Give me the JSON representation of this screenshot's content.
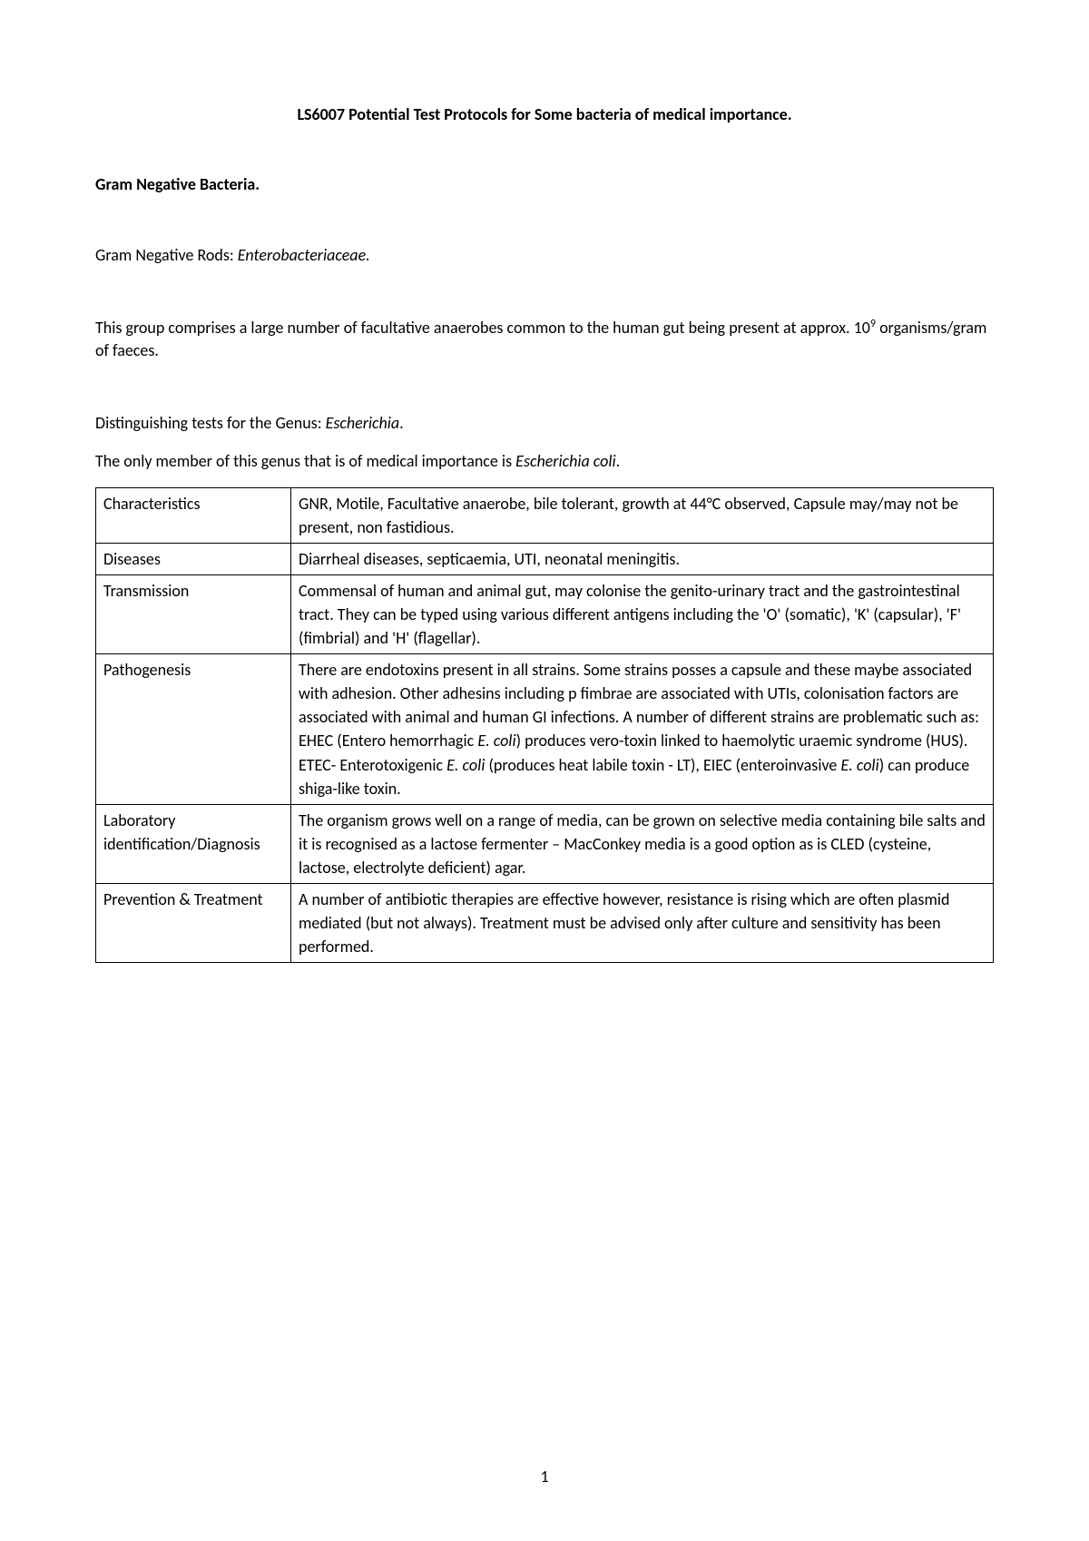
{
  "title": "LS6007 Potential Test Protocols for Some bacteria of medical importance.",
  "section_heading": "Gram Negative Bacteria.",
  "subheading_prefix": "Gram Negative Rods: ",
  "subheading_italic": "Enterobacteriaceae.",
  "intro_prefix": "This group comprises a large number of facultative anaerobes common to the human gut being present at approx. 10",
  "intro_sup": "9",
  "intro_suffix": " organisms/gram of faeces.",
  "genus_prefix": "Distinguishing tests for the Genus: ",
  "genus_italic": "Escherichia",
  "genus_suffix": ".",
  "member_prefix": "The only member of this genus that is of medical importance is ",
  "member_italic": "Escherichia coli",
  "member_suffix": ".",
  "table": {
    "rows": [
      {
        "label": "Characteristics",
        "content": "GNR, Motile, Facultative anaerobe, bile tolerant, growth at 44°C observed, Capsule may/may not be present, non fastidious."
      },
      {
        "label": "Diseases",
        "content": "Diarrheal diseases, septicaemia, UTI, neonatal meningitis."
      },
      {
        "label": "Transmission",
        "content": "Commensal of human and animal gut, may colonise the genito-urinary tract and the gastrointestinal tract. They can be typed using various different antigens including the 'O' (somatic), 'K' (capsular), 'F' (fimbrial) and 'H' (flagellar)."
      },
      {
        "label": "Pathogenesis",
        "content_parts": [
          {
            "text": "There are endotoxins present in all strains. Some strains posses a capsule and these maybe associated with adhesion. Other adhesins including  p fimbrae are associated with UTIs, colonisation factors are associated with animal and human GI infections. A number of different strains are problematic such as: EHEC (Entero hemorrhagic ",
            "italic": false
          },
          {
            "text": "E. coli",
            "italic": true
          },
          {
            "text": ") produces vero-toxin linked to haemolytic uraemic syndrome (HUS). ETEC- Enterotoxigenic ",
            "italic": false
          },
          {
            "text": "E. coli",
            "italic": true
          },
          {
            "text": " (produces  heat labile toxin - LT), EIEC (enteroinvasive ",
            "italic": false
          },
          {
            "text": "E. coli",
            "italic": true
          },
          {
            "text": ") can produce shiga-like toxin.",
            "italic": false
          }
        ]
      },
      {
        "label": "Laboratory identification/Diagnosis",
        "content": "The organism grows well on a range of media, can be grown on selective media containing bile salts and it is recognised as a lactose fermenter – MacConkey media is a good option as is CLED (cysteine, lactose, electrolyte deficient) agar."
      },
      {
        "label": "Prevention & Treatment",
        "content": "A number of antibiotic therapies are effective however, resistance is rising which are often plasmid mediated (but not always). Treatment must be advised only after culture and sensitivity has been performed."
      }
    ]
  },
  "page_number": "1"
}
